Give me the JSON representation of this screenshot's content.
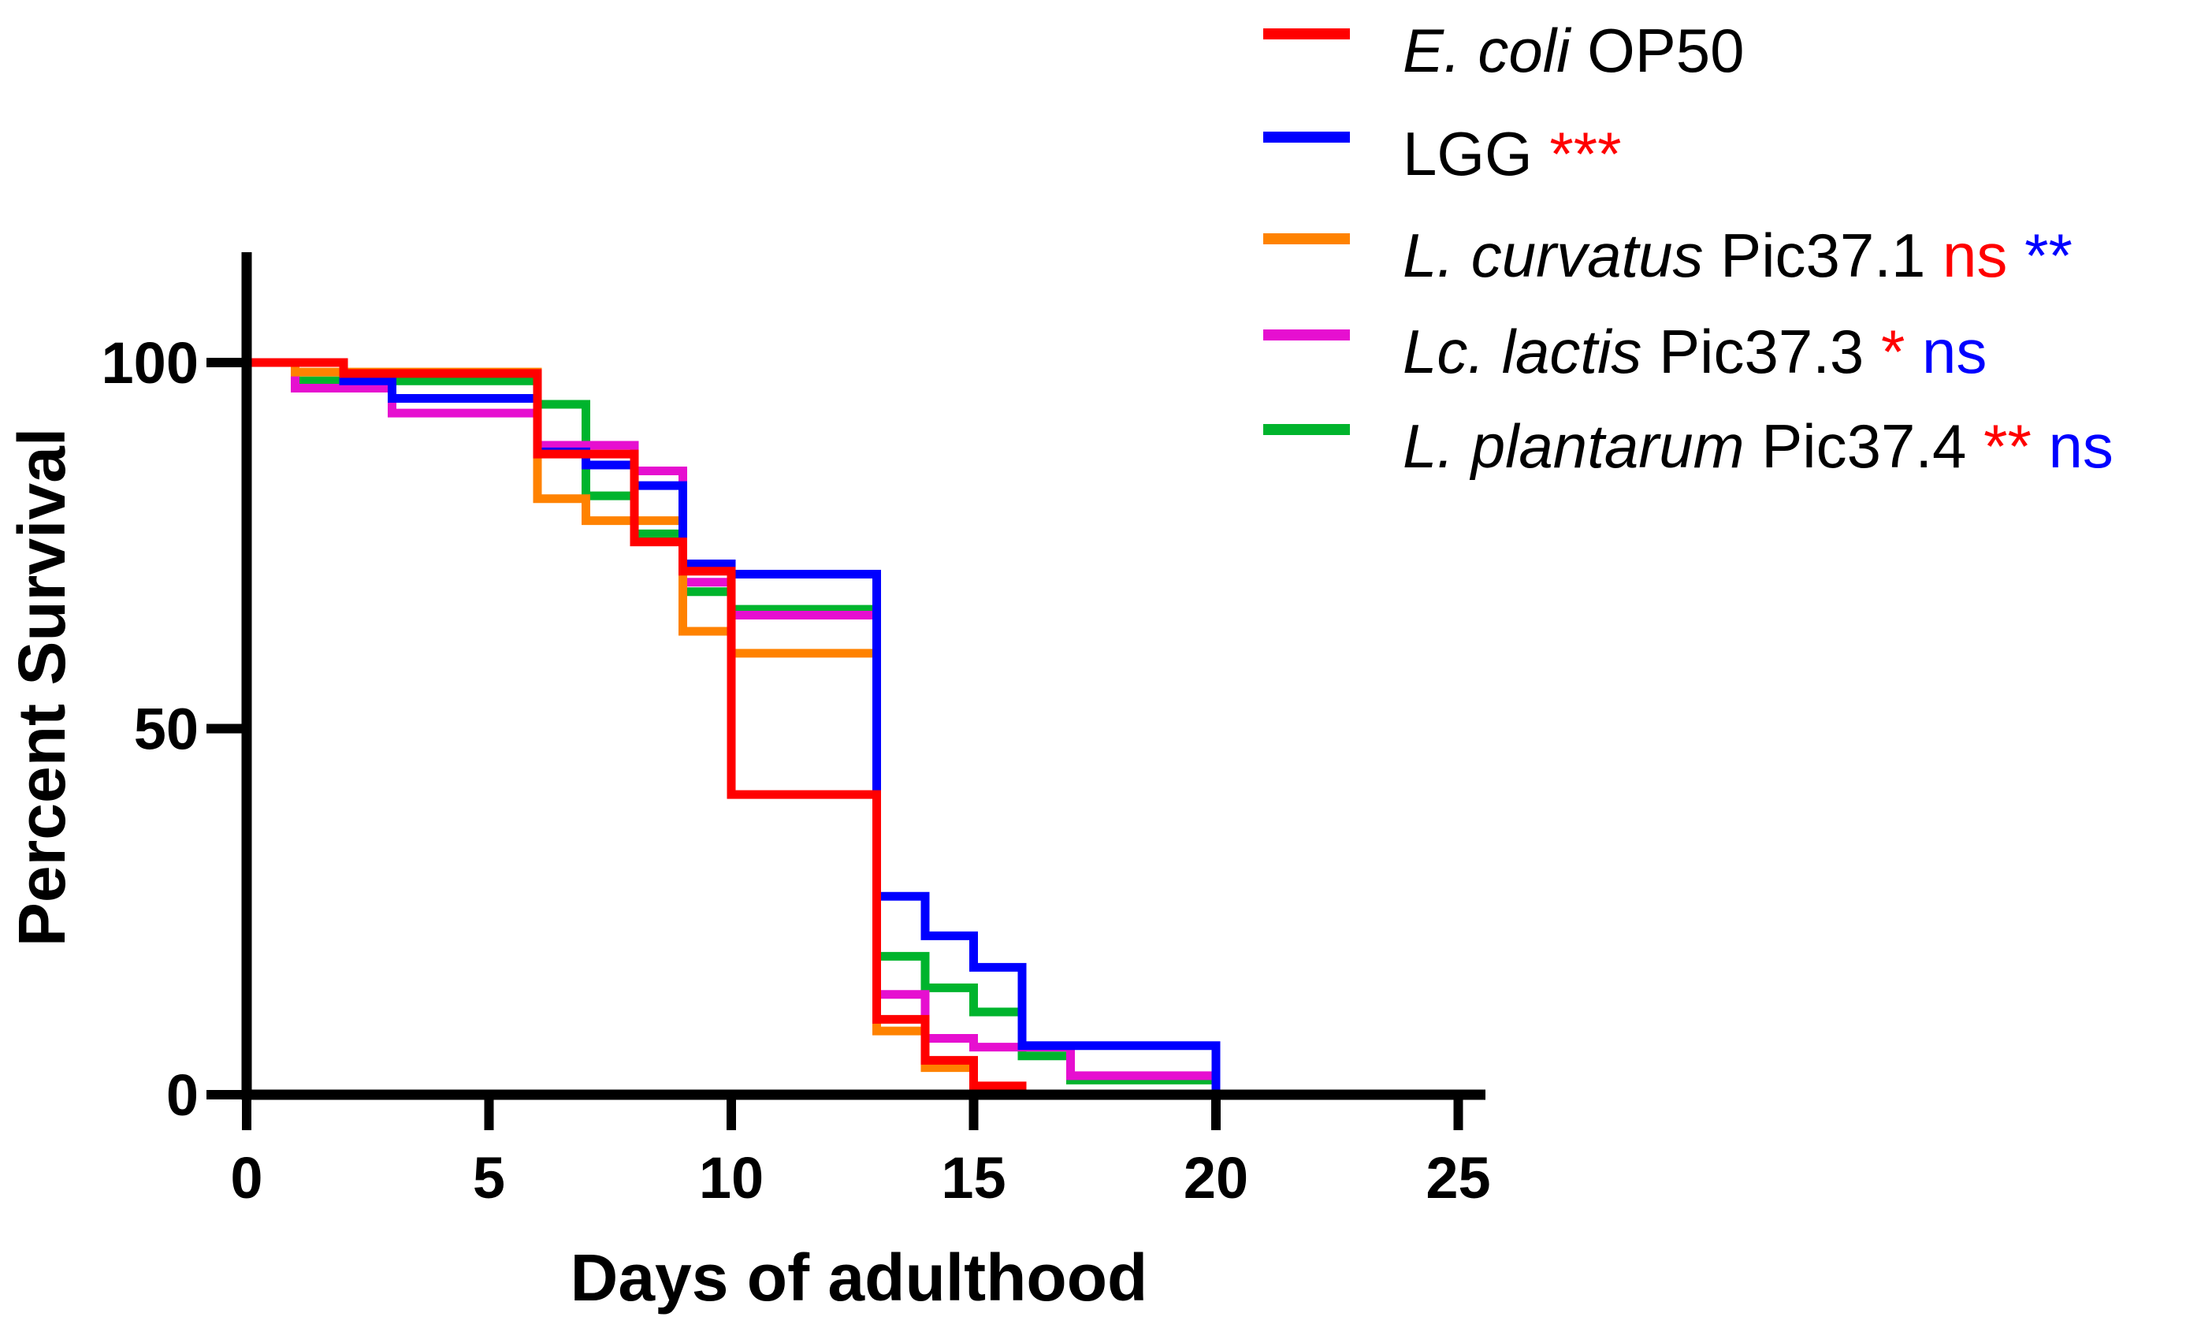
{
  "chart_data": {
    "type": "line",
    "subtype": "kaplan-meier-step",
    "title": "",
    "xlabel": "Days of adulthood",
    "ylabel": "Percent Survival",
    "xlim": [
      0,
      25
    ],
    "ylim": [
      0,
      100
    ],
    "grid": false,
    "legend_position": "top-right",
    "xticks": [
      0,
      5,
      10,
      15,
      20,
      25
    ],
    "xtick_labels": [
      "0",
      "5",
      "10",
      "15",
      "20",
      "25"
    ],
    "yticks": [
      0,
      50,
      100
    ],
    "ytick_labels": [
      "0",
      "50",
      "100"
    ],
    "series": [
      {
        "name": "E. coli OP50",
        "color": "#FF0000",
        "steps_day_percent": [
          [
            0,
            100
          ],
          [
            2,
            98.5
          ],
          [
            6,
            87.5
          ],
          [
            8,
            75.5
          ],
          [
            9,
            71.5
          ],
          [
            10,
            41
          ],
          [
            13,
            10.3
          ],
          [
            14,
            4.7
          ],
          [
            15,
            1.2
          ],
          [
            16,
            0
          ]
        ],
        "end_day": 16.1
      },
      {
        "name": "LGG",
        "color": "#0000FF",
        "steps_day_percent": [
          [
            0,
            100
          ],
          [
            2,
            97.5
          ],
          [
            3,
            95.1
          ],
          [
            6,
            87.8
          ],
          [
            7,
            86
          ],
          [
            8,
            83.2
          ],
          [
            9,
            72.5
          ],
          [
            10,
            71.1
          ],
          [
            13,
            27.1
          ],
          [
            14,
            21.7
          ],
          [
            15,
            17.4
          ],
          [
            16,
            6.7
          ],
          [
            20,
            0
          ]
        ],
        "end_day": 20
      },
      {
        "name": "L. curvatus Pic37.1",
        "color": "#FF8200",
        "steps_day_percent": [
          [
            0,
            100
          ],
          [
            1,
            98.7
          ],
          [
            6,
            81.4
          ],
          [
            7,
            78.4
          ],
          [
            9,
            63.3
          ],
          [
            10,
            60.3
          ],
          [
            13,
            8.7
          ],
          [
            14,
            3.7
          ],
          [
            15,
            0
          ]
        ],
        "end_day": 15.3
      },
      {
        "name": "Lc. lactis Pic37.3",
        "color": "#E60FD0",
        "steps_day_percent": [
          [
            0,
            100
          ],
          [
            1,
            96.5
          ],
          [
            3,
            93.1
          ],
          [
            6,
            88.7
          ],
          [
            8,
            85.2
          ],
          [
            9,
            70
          ],
          [
            10,
            65.5
          ],
          [
            13,
            13.7
          ],
          [
            14,
            7.7
          ],
          [
            15,
            6.5
          ],
          [
            17,
            2.6
          ]
        ],
        "end_day": 20
      },
      {
        "name": "L. plantarum Pic37.4",
        "color": "#00B42D",
        "steps_day_percent": [
          [
            0,
            100
          ],
          [
            1,
            97.5
          ],
          [
            6,
            94.3
          ],
          [
            7,
            81.8
          ],
          [
            8,
            76.6
          ],
          [
            9,
            68.7
          ],
          [
            10,
            66.3
          ],
          [
            13,
            18.9
          ],
          [
            14,
            14.6
          ],
          [
            15,
            11.3
          ],
          [
            16,
            5.3
          ],
          [
            17,
            2.0
          ]
        ],
        "end_day": 20
      }
    ]
  },
  "legend": {
    "items": [
      {
        "series": "E. coli OP50",
        "swatch_color": "#FF0000",
        "parts": [
          {
            "text": "E. coli",
            "italic": true
          },
          {
            "text": " OP50"
          }
        ]
      },
      {
        "series": "LGG",
        "swatch_color": "#0000FF",
        "parts": [
          {
            "text": "LGG "
          },
          {
            "text": "***",
            "color": "#FF0000"
          }
        ]
      },
      {
        "series": "L. curvatus Pic37.1",
        "swatch_color": "#FF8200",
        "parts": [
          {
            "text": "L. curvatus",
            "italic": true
          },
          {
            "text": " Pic37.1 "
          },
          {
            "text": "ns",
            "color": "#FF0000"
          },
          {
            "text": " "
          },
          {
            "text": "**",
            "color": "#0000FF"
          }
        ]
      },
      {
        "series": "Lc. lactis Pic37.3",
        "swatch_color": "#E60FD0",
        "parts": [
          {
            "text": "Lc. lactis",
            "italic": true
          },
          {
            "text": " Pic37.3 "
          },
          {
            "text": "*",
            "color": "#FF0000"
          },
          {
            "text": " "
          },
          {
            "text": "ns",
            "color": "#0000FF"
          }
        ]
      },
      {
        "series": "L. plantarum Pic37.4",
        "swatch_color": "#00B42D",
        "parts": [
          {
            "text": "L. plantarum",
            "italic": true
          },
          {
            "text": " Pic37.4 "
          },
          {
            "text": "**",
            "color": "#FF0000"
          },
          {
            "text": " "
          },
          {
            "text": "ns",
            "color": "#0000FF"
          }
        ]
      }
    ]
  }
}
